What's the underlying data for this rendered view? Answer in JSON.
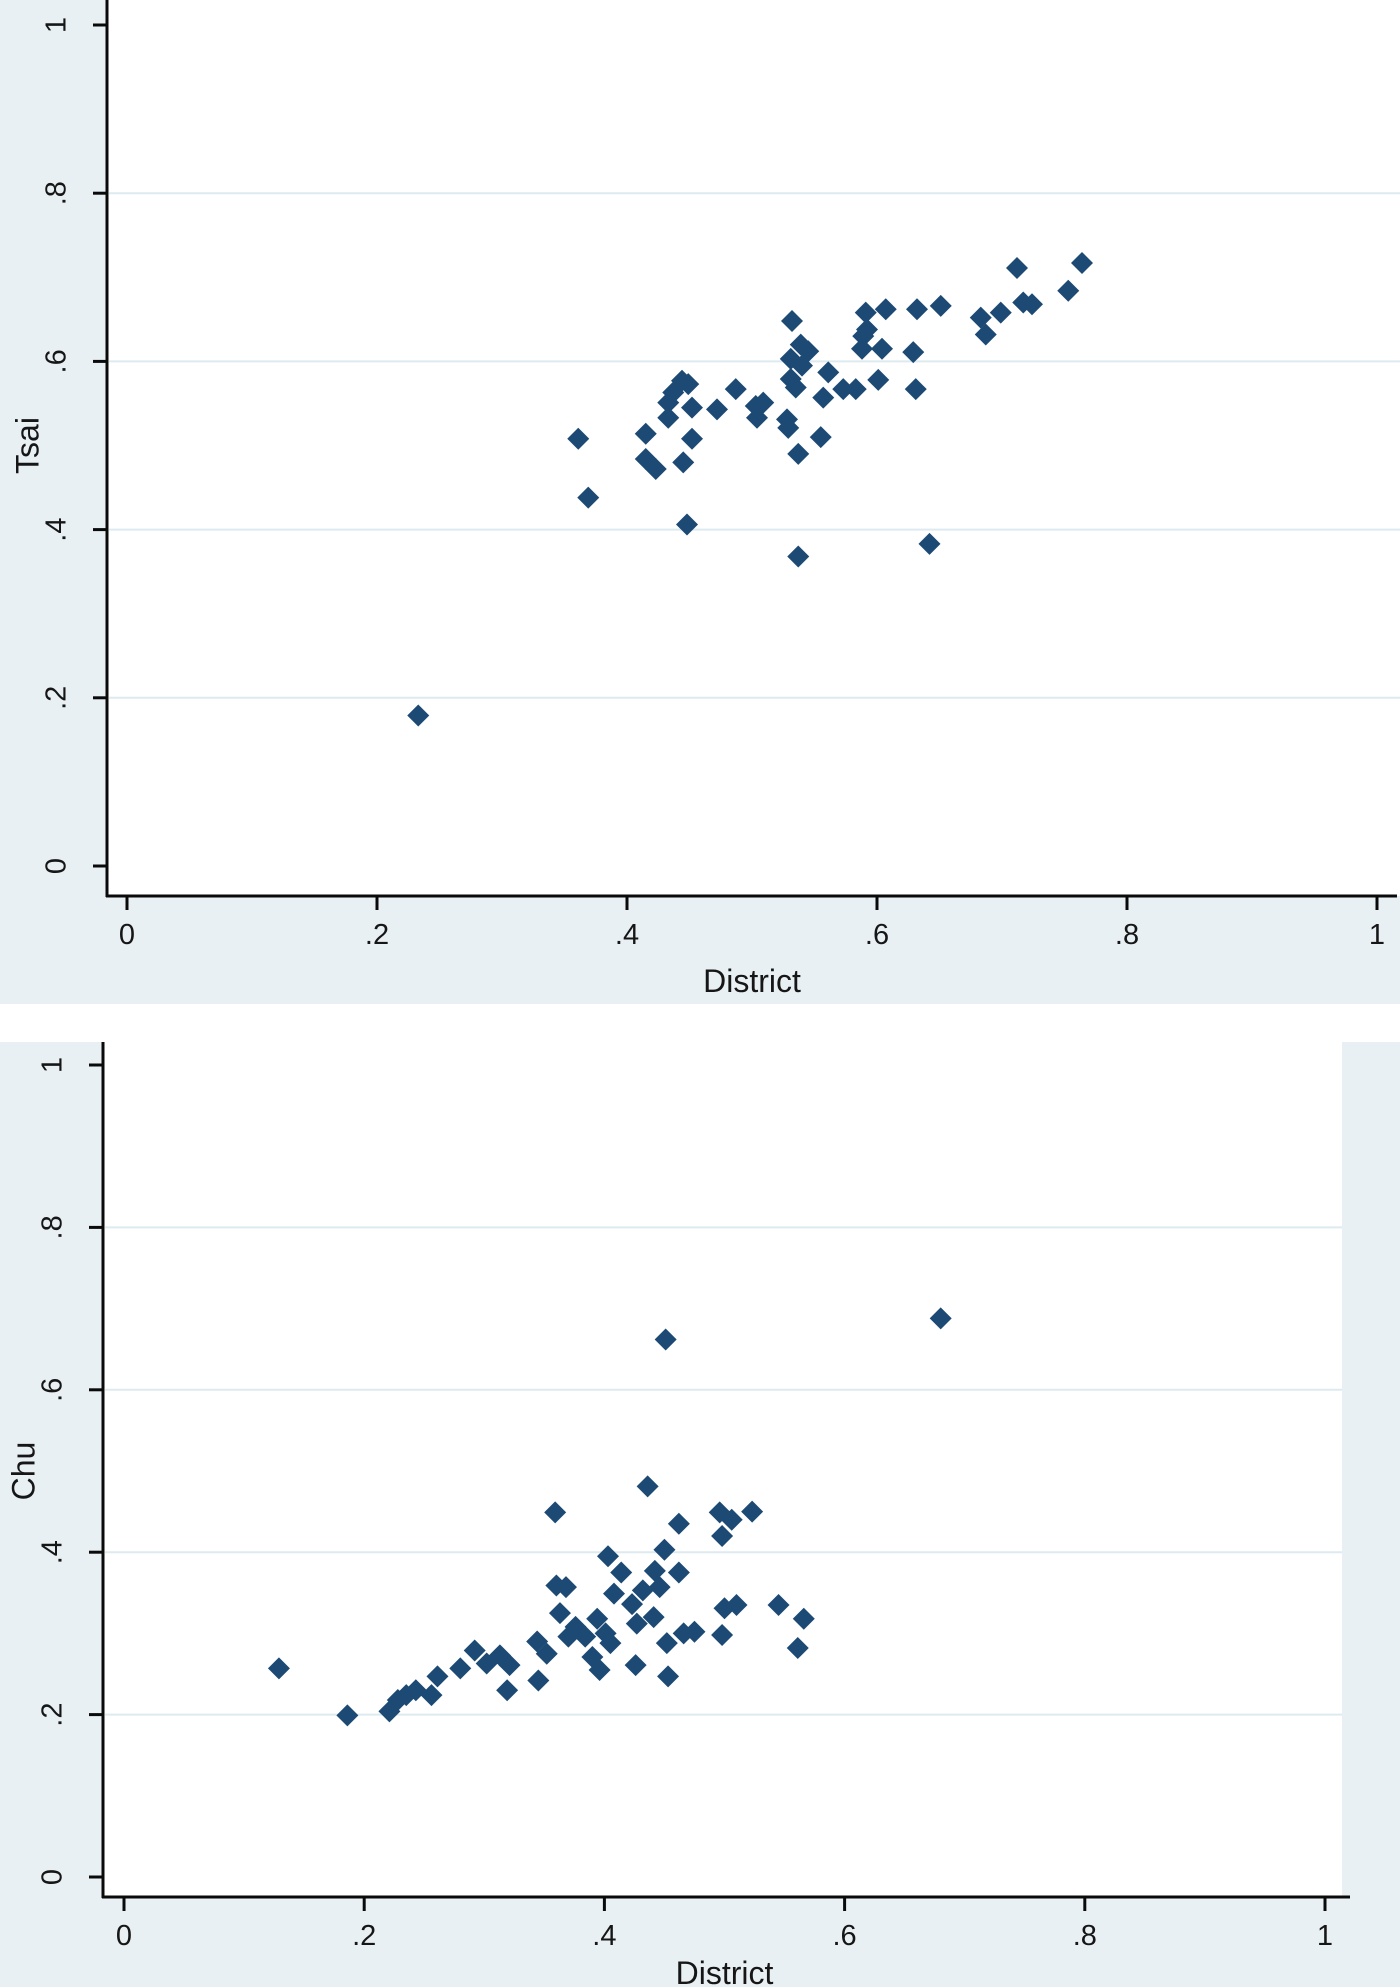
{
  "page": {
    "description": "Two stacked Stata scatterplots comparing candidate vote shares against district vote share"
  },
  "colors": {
    "chart_background": "#e9f0f3",
    "plot_background": "#ffffff",
    "gridline": "#ddeaf0",
    "axis_line": "#0a0a0a",
    "tick_text": "#161616",
    "marker_fill": "#1c4a74"
  },
  "chart_data": [
    {
      "type": "scatter",
      "title": "",
      "xlabel": "District",
      "ylabel": "Tsai",
      "xlim": [
        0,
        1
      ],
      "ylim": [
        0,
        1
      ],
      "grid": "horizontal-only",
      "grid_values": [
        0.2,
        0.4,
        0.6,
        0.8
      ],
      "legend_position": "none",
      "marker": "diamond",
      "xticks": {
        "values": [
          0,
          0.2,
          0.4,
          0.6,
          0.8,
          1
        ],
        "labels": [
          "0",
          ".2",
          ".4",
          ".6",
          ".8",
          "1"
        ]
      },
      "yticks": {
        "values": [
          0,
          0.2,
          0.4,
          0.6,
          0.8,
          1
        ],
        "labels": [
          "0",
          ".2",
          ".4",
          ".6",
          ".8",
          "1"
        ]
      },
      "points": [
        [
          0.233,
          0.179
        ],
        [
          0.361,
          0.508
        ],
        [
          0.369,
          0.438
        ],
        [
          0.415,
          0.514
        ],
        [
          0.415,
          0.484
        ],
        [
          0.423,
          0.472
        ],
        [
          0.433,
          0.551
        ],
        [
          0.433,
          0.533
        ],
        [
          0.445,
          0.48
        ],
        [
          0.452,
          0.508
        ],
        [
          0.448,
          0.406
        ],
        [
          0.444,
          0.577
        ],
        [
          0.449,
          0.573
        ],
        [
          0.437,
          0.563
        ],
        [
          0.452,
          0.545
        ],
        [
          0.472,
          0.543
        ],
        [
          0.487,
          0.567
        ],
        [
          0.503,
          0.547
        ],
        [
          0.509,
          0.551
        ],
        [
          0.504,
          0.533
        ],
        [
          0.528,
          0.531
        ],
        [
          0.529,
          0.521
        ],
        [
          0.532,
          0.648
        ],
        [
          0.539,
          0.62
        ],
        [
          0.545,
          0.612
        ],
        [
          0.531,
          0.603
        ],
        [
          0.54,
          0.595
        ],
        [
          0.531,
          0.579
        ],
        [
          0.535,
          0.569
        ],
        [
          0.561,
          0.587
        ],
        [
          0.557,
          0.557
        ],
        [
          0.573,
          0.567
        ],
        [
          0.583,
          0.567
        ],
        [
          0.601,
          0.578
        ],
        [
          0.555,
          0.51
        ],
        [
          0.537,
          0.49
        ],
        [
          0.537,
          0.368
        ],
        [
          0.642,
          0.383
        ],
        [
          0.591,
          0.658
        ],
        [
          0.607,
          0.662
        ],
        [
          0.592,
          0.638
        ],
        [
          0.589,
          0.63
        ],
        [
          0.588,
          0.615
        ],
        [
          0.604,
          0.615
        ],
        [
          0.632,
          0.662
        ],
        [
          0.651,
          0.666
        ],
        [
          0.629,
          0.611
        ],
        [
          0.631,
          0.567
        ],
        [
          0.683,
          0.652
        ],
        [
          0.687,
          0.632
        ],
        [
          0.699,
          0.658
        ],
        [
          0.712,
          0.711
        ],
        [
          0.717,
          0.67
        ],
        [
          0.724,
          0.668
        ],
        [
          0.753,
          0.684
        ],
        [
          0.764,
          0.717
        ]
      ]
    },
    {
      "type": "scatter",
      "title": "",
      "xlabel": "District",
      "ylabel": "Chu",
      "xlim": [
        0,
        1
      ],
      "ylim": [
        0,
        1
      ],
      "grid": "horizontal-only",
      "grid_values": [
        0.2,
        0.4,
        0.6,
        0.8
      ],
      "legend_position": "none",
      "marker": "diamond",
      "xticks": {
        "values": [
          0,
          0.2,
          0.4,
          0.6,
          0.8,
          1
        ],
        "labels": [
          "0",
          ".2",
          ".4",
          ".6",
          ".8",
          "1"
        ]
      },
      "yticks": {
        "values": [
          0,
          0.2,
          0.4,
          0.6,
          0.8,
          1
        ],
        "labels": [
          "0",
          ".2",
          ".4",
          ".6",
          ".8",
          "1"
        ]
      },
      "points": [
        [
          0.129,
          0.257
        ],
        [
          0.186,
          0.199
        ],
        [
          0.221,
          0.204
        ],
        [
          0.228,
          0.218
        ],
        [
          0.235,
          0.224
        ],
        [
          0.243,
          0.23
        ],
        [
          0.256,
          0.224
        ],
        [
          0.261,
          0.247
        ],
        [
          0.28,
          0.257
        ],
        [
          0.292,
          0.279
        ],
        [
          0.302,
          0.263
        ],
        [
          0.313,
          0.273
        ],
        [
          0.321,
          0.261
        ],
        [
          0.319,
          0.23
        ],
        [
          0.344,
          0.29
        ],
        [
          0.352,
          0.275
        ],
        [
          0.345,
          0.242
        ],
        [
          0.37,
          0.296
        ],
        [
          0.36,
          0.359
        ],
        [
          0.368,
          0.357
        ],
        [
          0.363,
          0.325
        ],
        [
          0.359,
          0.449
        ],
        [
          0.436,
          0.481
        ],
        [
          0.451,
          0.662
        ],
        [
          0.68,
          0.688
        ],
        [
          0.462,
          0.435
        ],
        [
          0.496,
          0.449
        ],
        [
          0.506,
          0.44
        ],
        [
          0.498,
          0.42
        ],
        [
          0.523,
          0.45
        ],
        [
          0.45,
          0.403
        ],
        [
          0.403,
          0.395
        ],
        [
          0.414,
          0.375
        ],
        [
          0.442,
          0.377
        ],
        [
          0.462,
          0.375
        ],
        [
          0.432,
          0.353
        ],
        [
          0.446,
          0.357
        ],
        [
          0.408,
          0.349
        ],
        [
          0.423,
          0.336
        ],
        [
          0.427,
          0.312
        ],
        [
          0.441,
          0.32
        ],
        [
          0.376,
          0.308
        ],
        [
          0.384,
          0.296
        ],
        [
          0.394,
          0.318
        ],
        [
          0.401,
          0.3
        ],
        [
          0.405,
          0.288
        ],
        [
          0.39,
          0.271
        ],
        [
          0.396,
          0.255
        ],
        [
          0.426,
          0.261
        ],
        [
          0.453,
          0.247
        ],
        [
          0.452,
          0.288
        ],
        [
          0.466,
          0.3
        ],
        [
          0.475,
          0.302
        ],
        [
          0.498,
          0.298
        ],
        [
          0.5,
          0.331
        ],
        [
          0.51,
          0.335
        ],
        [
          0.545,
          0.335
        ],
        [
          0.566,
          0.318
        ],
        [
          0.561,
          0.282
        ]
      ]
    }
  ]
}
